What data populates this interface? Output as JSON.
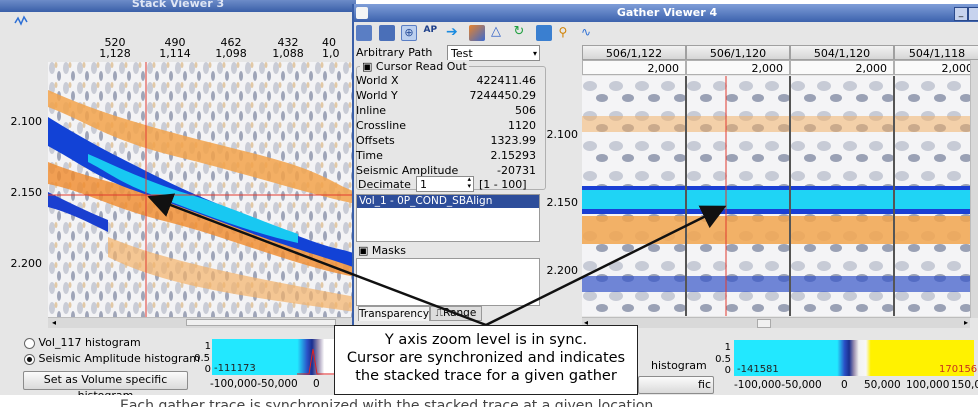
{
  "stack_viewer": {
    "title": "Stack Viewer 3",
    "inline_ticks": [
      "520",
      "490",
      "462",
      "432",
      "40"
    ],
    "crossline_ticks": [
      "1,128",
      "1,114",
      "1,098",
      "1,088",
      "1,0"
    ],
    "time_ticks": [
      "2.100",
      "2.150",
      "2.200"
    ],
    "histogram_options": [
      {
        "label": "Vol_117 histogram",
        "selected": false
      },
      {
        "label": "Seismic Amplitude histogram",
        "selected": true
      }
    ],
    "histogram_button": "Set as Volume specific histogram",
    "histogram": {
      "y_ticks": [
        "1",
        "0.5",
        "0"
      ],
      "min_value": "-111173",
      "x_ticks": [
        "-100,000-50,000",
        "0"
      ]
    }
  },
  "gather_viewer": {
    "title": "Gather Viewer 4",
    "toolbar_icons": [
      "pointer-icon",
      "save-icon",
      "crosshair-icon",
      "ap-icon",
      "arrow-right-icon",
      "layers-icon",
      "triangle-icon",
      "refresh-icon",
      "camera-icon",
      "zoom-icon",
      "wave-icon"
    ],
    "arbitrary_path_label": "Arbitrary Path",
    "arbitrary_path_value": "Test",
    "cursor_readout_title": "Cursor Read Out",
    "readout": [
      {
        "label": "World X",
        "value": "422411.46"
      },
      {
        "label": "World Y",
        "value": "7244450.29"
      },
      {
        "label": "Inline",
        "value": "506"
      },
      {
        "label": "Crossline",
        "value": "1120"
      },
      {
        "label": "Offsets",
        "value": "1323.99"
      },
      {
        "label": "Time",
        "value": "2.15293"
      },
      {
        "label": "Seismic Amplitude",
        "value": "-20731"
      }
    ],
    "decimate_label": "Decimate",
    "decimate_value": "1",
    "decimate_range": "[1 - 100]",
    "volume_list": [
      "Vol_1 - 0P_COND_SBAlign"
    ],
    "masks_title": "Masks",
    "tabs": [
      "Transparency",
      "Range"
    ],
    "columns": [
      {
        "header": "506/1,122",
        "offset": "2,000"
      },
      {
        "header": "506/1,120",
        "offset": "2,000"
      },
      {
        "header": "504/1,120",
        "offset": "2,000"
      },
      {
        "header": "504/1,118",
        "offset": "2,000"
      }
    ],
    "time_ticks": [
      "2.100",
      "2.150",
      "2.200"
    ],
    "histogram": {
      "y_ticks": [
        "1",
        "0.5",
        "0"
      ],
      "min_value": "-141581",
      "max_value": "170156",
      "x_ticks": [
        "-100,000-50,000",
        "0",
        "50,000",
        "100,000",
        "150,00"
      ]
    },
    "partial_labels": {
      "histogram_label": "histogram",
      "button_label": "fic histogram"
    }
  },
  "callout": {
    "lines": [
      "Y axis zoom level is in sync.",
      "Cursor are synchronized and indicates",
      "the stacked trace for a given gather"
    ]
  },
  "caption": "Each gather trace is synchronized with the stacked trace at a given location"
}
